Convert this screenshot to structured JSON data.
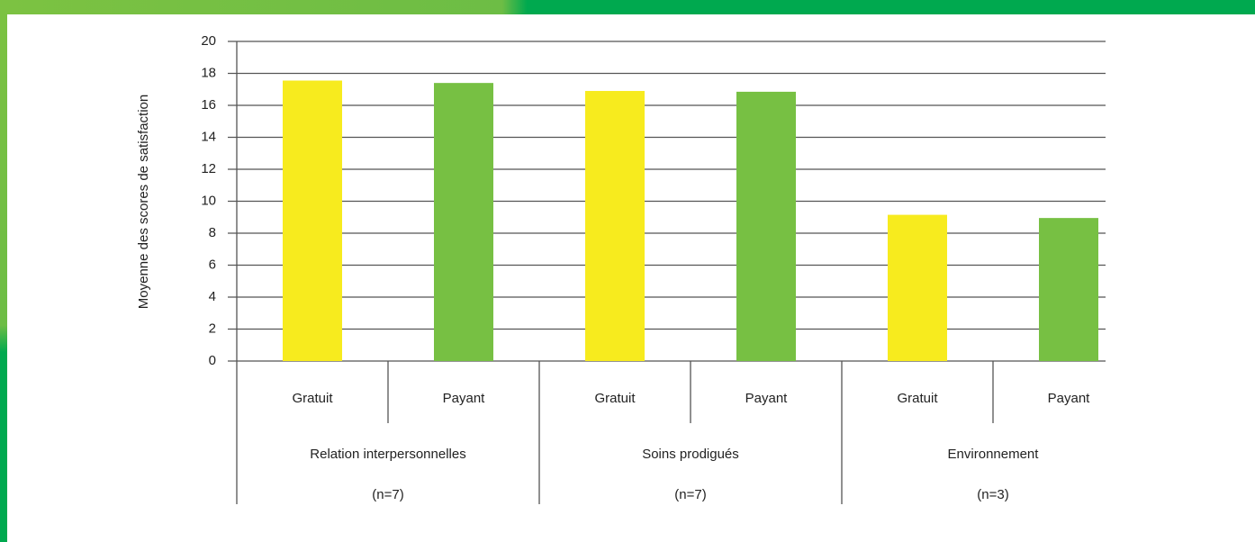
{
  "chart_data": {
    "type": "bar",
    "y_label": "Moyenne des scores de satisfaction",
    "categories": [
      "Gratuit",
      "Payant",
      "Gratuit",
      "Payant",
      "Gratuit",
      "Payant"
    ],
    "values": [
      17.55,
      17.4,
      16.9,
      16.85,
      9.15,
      8.95
    ],
    "colors": [
      "#f7eb1e",
      "#77c043",
      "#f7eb1e",
      "#77c043",
      "#f7eb1e",
      "#77c043"
    ],
    "groups": [
      {
        "label": "Relation interpersonnelles",
        "note": "(n=7)"
      },
      {
        "label": "Soins prodigués",
        "note": "(n=7)"
      },
      {
        "label": "Environnement",
        "note": "(n=3)"
      }
    ],
    "ylim": [
      0,
      20
    ],
    "yticks": [
      0,
      2,
      4,
      6,
      8,
      10,
      12,
      14,
      16,
      18,
      20
    ],
    "grid": true
  }
}
